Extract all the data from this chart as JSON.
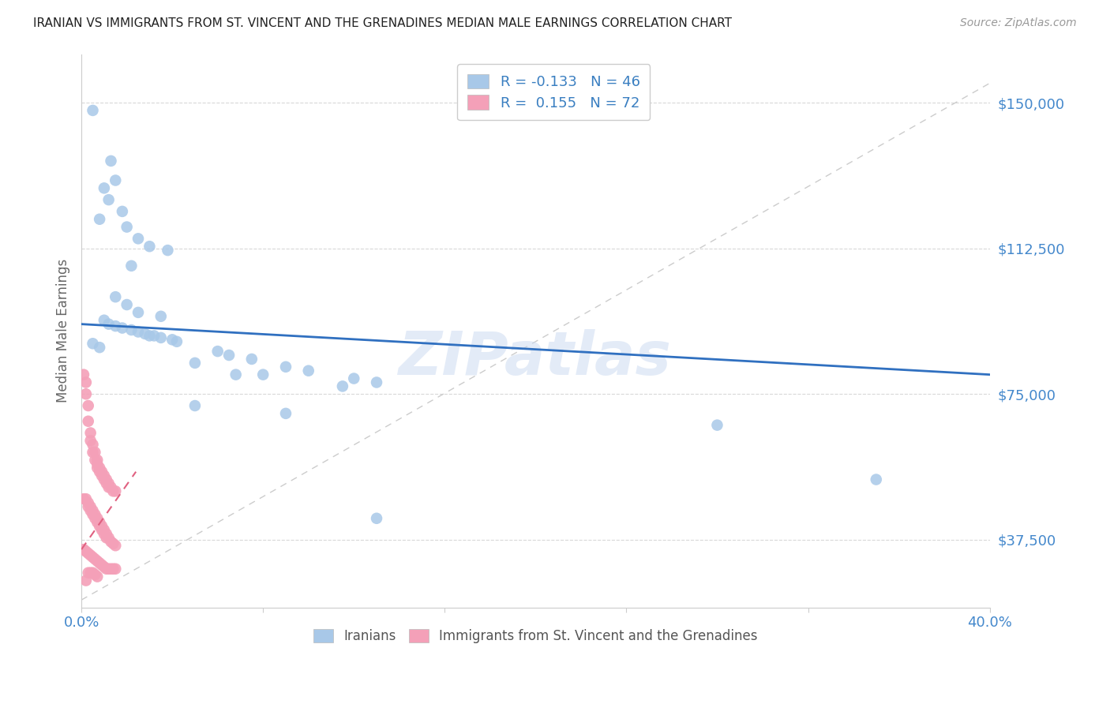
{
  "title": "IRANIAN VS IMMIGRANTS FROM ST. VINCENT AND THE GRENADINES MEDIAN MALE EARNINGS CORRELATION CHART",
  "source": "Source: ZipAtlas.com",
  "ylabel": "Median Male Earnings",
  "xlim": [
    0.0,
    0.4
  ],
  "ylim": [
    20000,
    162500
  ],
  "yticks": [
    37500,
    75000,
    112500,
    150000
  ],
  "ytick_labels": [
    "$37,500",
    "$75,000",
    "$112,500",
    "$150,000"
  ],
  "xticks": [
    0.0,
    0.08,
    0.16,
    0.24,
    0.32,
    0.4
  ],
  "xtick_labels": [
    "0.0%",
    "",
    "",
    "",
    "",
    "40.0%"
  ],
  "legend_blue_r": "-0.133",
  "legend_blue_n": "46",
  "legend_pink_r": "0.155",
  "legend_pink_n": "72",
  "watermark": "ZIPatlas",
  "blue_color": "#a8c8e8",
  "pink_color": "#f4a0b8",
  "trendline_blue_color": "#3070c0",
  "trendline_pink_color": "#e06080",
  "blue_scatter": [
    [
      0.005,
      148000
    ],
    [
      0.013,
      135000
    ],
    [
      0.015,
      130000
    ],
    [
      0.01,
      128000
    ],
    [
      0.012,
      125000
    ],
    [
      0.018,
      122000
    ],
    [
      0.008,
      120000
    ],
    [
      0.02,
      118000
    ],
    [
      0.025,
      115000
    ],
    [
      0.03,
      113000
    ],
    [
      0.038,
      112000
    ],
    [
      0.022,
      108000
    ],
    [
      0.015,
      100000
    ],
    [
      0.02,
      98000
    ],
    [
      0.025,
      96000
    ],
    [
      0.035,
      95000
    ],
    [
      0.01,
      94000
    ],
    [
      0.012,
      93000
    ],
    [
      0.015,
      92500
    ],
    [
      0.018,
      92000
    ],
    [
      0.022,
      91500
    ],
    [
      0.025,
      91000
    ],
    [
      0.028,
      90500
    ],
    [
      0.03,
      90000
    ],
    [
      0.032,
      90000
    ],
    [
      0.035,
      89500
    ],
    [
      0.04,
      89000
    ],
    [
      0.042,
      88500
    ],
    [
      0.005,
      88000
    ],
    [
      0.008,
      87000
    ],
    [
      0.06,
      86000
    ],
    [
      0.065,
      85000
    ],
    [
      0.075,
      84000
    ],
    [
      0.05,
      83000
    ],
    [
      0.09,
      82000
    ],
    [
      0.1,
      81000
    ],
    [
      0.068,
      80000
    ],
    [
      0.08,
      80000
    ],
    [
      0.12,
      79000
    ],
    [
      0.13,
      78000
    ],
    [
      0.115,
      77000
    ],
    [
      0.05,
      72000
    ],
    [
      0.09,
      70000
    ],
    [
      0.28,
      67000
    ],
    [
      0.35,
      53000
    ],
    [
      0.13,
      43000
    ]
  ],
  "pink_scatter": [
    [
      0.001,
      80000
    ],
    [
      0.002,
      78000
    ],
    [
      0.002,
      75000
    ],
    [
      0.003,
      72000
    ],
    [
      0.003,
      68000
    ],
    [
      0.004,
      65000
    ],
    [
      0.004,
      63000
    ],
    [
      0.005,
      62000
    ],
    [
      0.005,
      60000
    ],
    [
      0.006,
      60000
    ],
    [
      0.006,
      58000
    ],
    [
      0.007,
      58000
    ],
    [
      0.007,
      57000
    ],
    [
      0.007,
      56000
    ],
    [
      0.008,
      56000
    ],
    [
      0.008,
      55000
    ],
    [
      0.009,
      55000
    ],
    [
      0.009,
      54000
    ],
    [
      0.01,
      54000
    ],
    [
      0.01,
      53000
    ],
    [
      0.011,
      53000
    ],
    [
      0.011,
      52000
    ],
    [
      0.012,
      52000
    ],
    [
      0.012,
      51000
    ],
    [
      0.013,
      51000
    ],
    [
      0.014,
      50000
    ],
    [
      0.015,
      50000
    ],
    [
      0.001,
      48000
    ],
    [
      0.002,
      48000
    ],
    [
      0.003,
      47000
    ],
    [
      0.003,
      46000
    ],
    [
      0.004,
      46000
    ],
    [
      0.004,
      45000
    ],
    [
      0.005,
      45000
    ],
    [
      0.005,
      44000
    ],
    [
      0.006,
      44000
    ],
    [
      0.006,
      43000
    ],
    [
      0.007,
      43000
    ],
    [
      0.007,
      42000
    ],
    [
      0.008,
      42000
    ],
    [
      0.008,
      41000
    ],
    [
      0.009,
      41000
    ],
    [
      0.009,
      40000
    ],
    [
      0.01,
      40000
    ],
    [
      0.01,
      39000
    ],
    [
      0.011,
      39000
    ],
    [
      0.011,
      38000
    ],
    [
      0.012,
      38000
    ],
    [
      0.013,
      37000
    ],
    [
      0.014,
      36500
    ],
    [
      0.015,
      36000
    ],
    [
      0.001,
      35000
    ],
    [
      0.002,
      34500
    ],
    [
      0.003,
      34000
    ],
    [
      0.004,
      33500
    ],
    [
      0.005,
      33000
    ],
    [
      0.006,
      32500
    ],
    [
      0.007,
      32000
    ],
    [
      0.008,
      31500
    ],
    [
      0.009,
      31000
    ],
    [
      0.01,
      30500
    ],
    [
      0.011,
      30000
    ],
    [
      0.012,
      30000
    ],
    [
      0.013,
      30000
    ],
    [
      0.014,
      30000
    ],
    [
      0.015,
      30000
    ],
    [
      0.003,
      29000
    ],
    [
      0.004,
      29000
    ],
    [
      0.005,
      29000
    ],
    [
      0.006,
      28500
    ],
    [
      0.007,
      28000
    ],
    [
      0.002,
      27000
    ]
  ],
  "blue_trend_x": [
    0.0,
    0.4
  ],
  "blue_trend_y": [
    93000,
    80000
  ],
  "pink_trend_x": [
    0.0,
    0.024
  ],
  "pink_trend_y": [
    35000,
    55000
  ],
  "diag_line_x": [
    0.0,
    0.4
  ],
  "diag_line_y": [
    22000,
    155000
  ],
  "background_color": "#ffffff",
  "grid_color": "#d8d8d8",
  "axis_color": "#cccccc",
  "title_color": "#222222",
  "ylabel_color": "#666666",
  "yticklabel_color": "#4488cc",
  "xticklabel_color": "#4488cc"
}
